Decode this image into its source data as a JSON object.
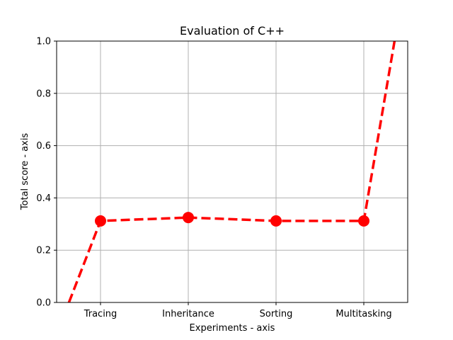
{
  "chart_data": {
    "type": "line",
    "title": "Evaluation of C++",
    "xlabel": "Experiments - axis",
    "ylabel": "Total score - axis",
    "categories": [
      "Tracing",
      "Inheritance",
      "Sorting",
      "Multitasking"
    ],
    "values": [
      0.312,
      0.325,
      0.312,
      0.312
    ],
    "line_extension": {
      "left": {
        "x": 0.64,
        "y": 0.0
      },
      "right": {
        "x": 4.35,
        "y": 1.0
      }
    },
    "ylim": [
      0,
      1.0
    ],
    "yticks": [
      "0.0",
      "0.2",
      "0.4",
      "0.6",
      "0.8",
      "1.0"
    ],
    "grid": true,
    "line_color": "#ff0000",
    "line_style": "dashed",
    "marker": "circle"
  }
}
